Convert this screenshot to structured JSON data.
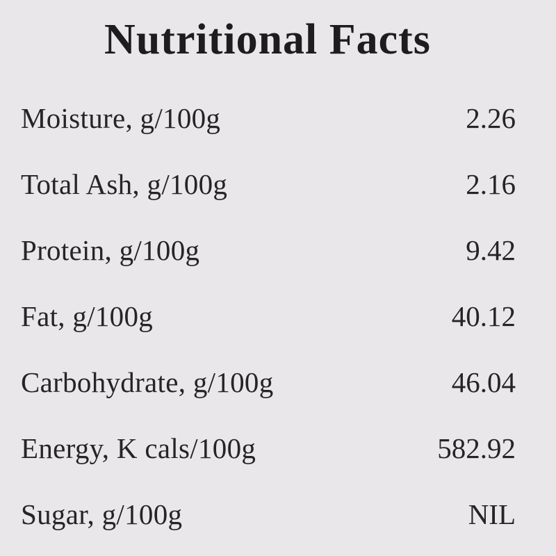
{
  "title": "Nutritional Facts",
  "rows": [
    {
      "label": "Moisture, g/100g",
      "value": "2.26"
    },
    {
      "label": "Total Ash, g/100g",
      "value": "2.16"
    },
    {
      "label": "Protein, g/100g",
      "value": "9.42"
    },
    {
      "label": "Fat, g/100g",
      "value": "40.12"
    },
    {
      "label": "Carbohydrate, g/100g",
      "value": "46.04"
    },
    {
      "label": "Energy, K cals/100g",
      "value": "582.92"
    },
    {
      "label": "Sugar, g/100g",
      "value": "NIL"
    }
  ]
}
